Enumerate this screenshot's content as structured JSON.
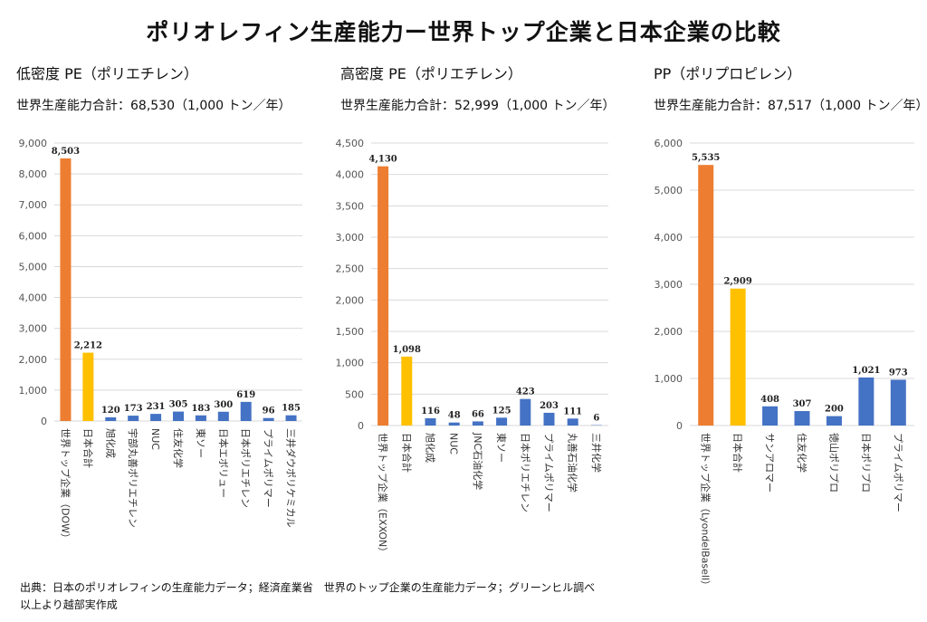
{
  "title": "ポリオレフィン生産能力ー世界トップ企業と日本企業の比較",
  "footer": {
    "line1": "出典：日本のポリオレフィンの生産能力データ；経済産業省　世界のトップ企業の生産能力データ；グリーンヒル調べ",
    "line2": "以上より越部実作成"
  },
  "colors": {
    "top": "#ED7D31",
    "japan_total": "#FFC000",
    "company": "#4472C4",
    "grid": "#D9D9D9"
  },
  "chart_data": [
    {
      "type": "bar",
      "title": "低密度 PE（ポリエチレン）",
      "subtitle": "世界生産能力合計：68,530（1,000 トン／年）",
      "categories": [
        "世界トップ企業（DOW）",
        "日本合計",
        "旭化成",
        "宇部丸善ポリエチレン",
        "NUC",
        "住友化学",
        "東ソー",
        "日本エボリュー",
        "日本ポリエチレン",
        "プライムポリマー",
        "三井ダウポリケミカル"
      ],
      "values": [
        8503,
        2212,
        120,
        173,
        231,
        305,
        183,
        300,
        619,
        96,
        185
      ],
      "ylim": [
        0,
        9000
      ],
      "yticks": [
        0,
        1000,
        2000,
        3000,
        4000,
        5000,
        6000,
        7000,
        8000,
        9000
      ],
      "grid": true,
      "legend": "none"
    },
    {
      "type": "bar",
      "title": "高密度 PE（ポリエチレン）",
      "subtitle": "世界生産能力合計：52,999（1,000 トン／年）",
      "categories": [
        "世界トップ企業（EXXON）",
        "日本合計",
        "旭化成",
        "NUC",
        "JNC石油化学",
        "東ソー",
        "日本ポリエチレン",
        "プライムポリマー",
        "丸善石油化学",
        "三井化学"
      ],
      "values": [
        4130,
        1098,
        116,
        48,
        66,
        125,
        423,
        203,
        111,
        6
      ],
      "ylim": [
        0,
        4500
      ],
      "yticks": [
        0,
        500,
        1000,
        1500,
        2000,
        2500,
        3000,
        3500,
        4000,
        4500
      ],
      "grid": true,
      "legend": "none"
    },
    {
      "type": "bar",
      "title": "PP（ポリプロピレン）",
      "subtitle": "世界生産能力合計：87,517（1,000 トン／年）",
      "categories": [
        "世界トップ企業（LyondelBasell）",
        "日本合計",
        "サンアロマー",
        "住友化学",
        "徳山ポリプロ",
        "日本ポリプロ",
        "プライムポリマー"
      ],
      "values": [
        5535,
        2909,
        408,
        307,
        200,
        1021,
        973
      ],
      "ylim": [
        0,
        6000
      ],
      "yticks": [
        0,
        1000,
        2000,
        3000,
        4000,
        5000,
        6000
      ],
      "grid": true,
      "legend": "none"
    }
  ]
}
